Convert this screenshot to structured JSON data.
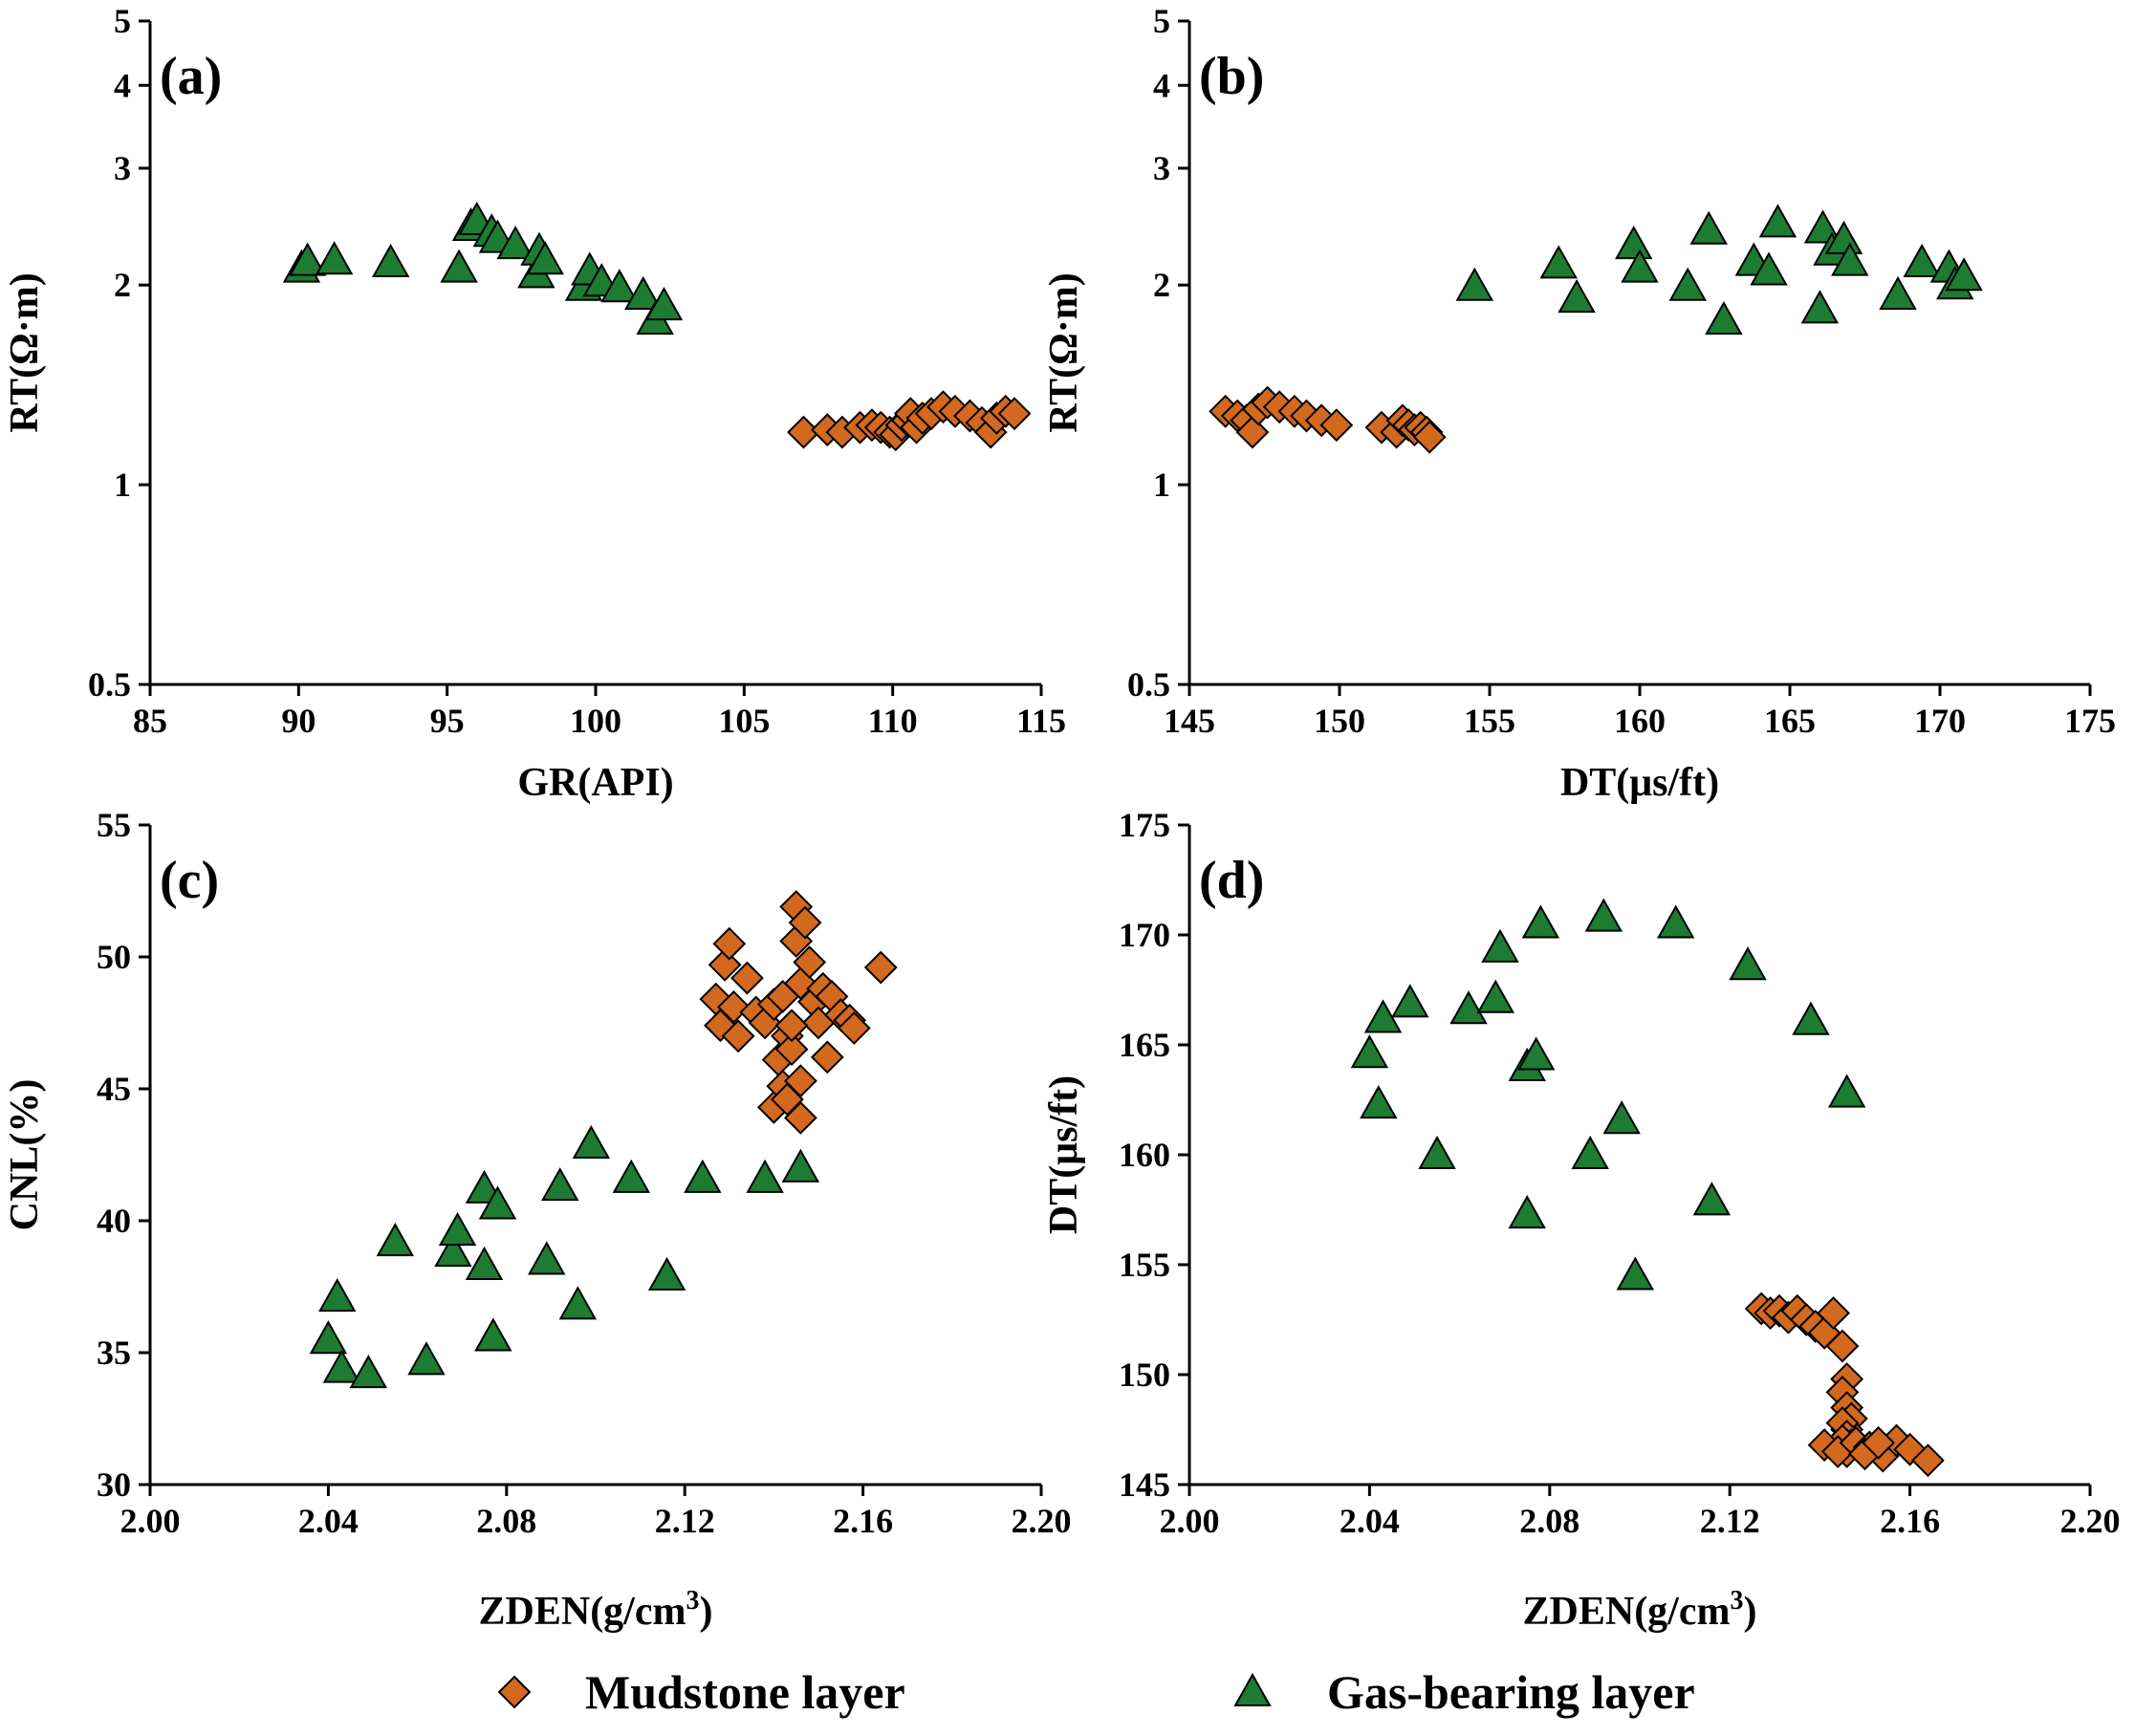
{
  "figure_title": "",
  "legend": {
    "items": [
      {
        "label": "Mudstone layer",
        "marker": "diamond",
        "color": "#D2691E"
      },
      {
        "label": "Gas-bearing layer",
        "marker": "triangle",
        "color": "#1E7B32"
      }
    ]
  },
  "chart_data": [
    {
      "type": "scatter",
      "panel_label": "(a)",
      "xlabel": "GR(API)",
      "ylabel": "RT(Ω·m)",
      "yscale": "log",
      "xlim": [
        85,
        115
      ],
      "ylim": [
        0.5,
        5
      ],
      "xticks": [
        "85",
        "90",
        "95",
        "100",
        "105",
        "110",
        "115"
      ],
      "yticks": [
        "0.5",
        "1",
        "2",
        "3",
        "4",
        "5"
      ],
      "series": [
        {
          "name": "Gas-bearing layer",
          "x": [
            90.1,
            90.3,
            91.2,
            93.1,
            95.4,
            95.8,
            96.0,
            96.5,
            96.7,
            97.3,
            98.0,
            98.1,
            98.3,
            99.6,
            99.8,
            100.2,
            100.8,
            101.6,
            102.0,
            102.3
          ],
          "y": [
            2.12,
            2.17,
            2.18,
            2.16,
            2.12,
            2.45,
            2.5,
            2.4,
            2.35,
            2.3,
            2.08,
            2.25,
            2.18,
            1.99,
            2.1,
            2.02,
            1.98,
            1.93,
            1.77,
            1.86
          ]
        },
        {
          "name": "Mudstone layer",
          "x": [
            107.0,
            107.8,
            108.3,
            108.9,
            109.3,
            109.6,
            109.9,
            110.1,
            110.3,
            110.5,
            110.6,
            110.8,
            111.0,
            111.3,
            111.7,
            112.1,
            112.6,
            113.0,
            113.3,
            113.5,
            113.8,
            114.1
          ],
          "y": [
            1.2,
            1.21,
            1.2,
            1.22,
            1.23,
            1.22,
            1.2,
            1.19,
            1.23,
            1.25,
            1.28,
            1.22,
            1.26,
            1.28,
            1.31,
            1.29,
            1.27,
            1.24,
            1.2,
            1.26,
            1.29,
            1.28
          ]
        }
      ]
    },
    {
      "type": "scatter",
      "panel_label": "(b)",
      "xlabel": "DT(μs/ft)",
      "ylabel": "RT(Ω·m)",
      "yscale": "log",
      "xlim": [
        145,
        175
      ],
      "ylim": [
        0.5,
        5
      ],
      "xticks": [
        "145",
        "150",
        "155",
        "160",
        "165",
        "170",
        "175"
      ],
      "yticks": [
        "0.5",
        "1",
        "2",
        "3",
        "4",
        "5"
      ],
      "series": [
        {
          "name": "Gas-bearing layer",
          "x": [
            154.5,
            157.3,
            157.9,
            159.8,
            160.0,
            161.6,
            162.3,
            162.8,
            163.8,
            164.3,
            164.6,
            166.0,
            166.1,
            166.4,
            166.8,
            167.0,
            168.6,
            169.4,
            170.3,
            170.5,
            170.8
          ],
          "y": [
            1.99,
            2.15,
            1.91,
            2.3,
            2.12,
            1.99,
            2.42,
            1.77,
            2.17,
            2.1,
            2.48,
            1.84,
            2.43,
            2.25,
            2.34,
            2.17,
            1.93,
            2.16,
            2.12,
            2.0,
            2.06
          ]
        },
        {
          "name": "Mudstone layer",
          "x": [
            146.2,
            146.6,
            146.9,
            147.1,
            147.3,
            147.6,
            148.0,
            148.5,
            148.9,
            149.4,
            149.9,
            151.4,
            151.9,
            152.1,
            152.3,
            152.5,
            152.7,
            152.9,
            153.0
          ],
          "y": [
            1.29,
            1.27,
            1.25,
            1.2,
            1.3,
            1.33,
            1.31,
            1.29,
            1.27,
            1.25,
            1.23,
            1.22,
            1.2,
            1.25,
            1.23,
            1.21,
            1.22,
            1.2,
            1.18
          ]
        }
      ]
    },
    {
      "type": "scatter",
      "panel_label": "(c)",
      "xlabel": "ZDEN(g/cm",
      "xlabel_sup": "3",
      "xlabel_end": ")",
      "ylabel": "CNL(%)",
      "xlim": [
        2.0,
        2.2
      ],
      "ylim": [
        30,
        55
      ],
      "xticks": [
        "2.00",
        "2.04",
        "2.08",
        "2.12",
        "2.16",
        "2.20"
      ],
      "yticks": [
        "30",
        "35",
        "40",
        "45",
        "50",
        "55"
      ],
      "series": [
        {
          "name": "Gas-bearing layer",
          "x": [
            2.04,
            2.042,
            2.043,
            2.049,
            2.055,
            2.062,
            2.068,
            2.069,
            2.075,
            2.075,
            2.077,
            2.078,
            2.089,
            2.092,
            2.096,
            2.099,
            2.108,
            2.116,
            2.124,
            2.138,
            2.146
          ],
          "y": [
            35.5,
            37.1,
            34.4,
            34.2,
            39.2,
            34.7,
            38.8,
            39.6,
            38.3,
            41.2,
            35.6,
            40.6,
            38.5,
            41.3,
            36.8,
            42.9,
            41.6,
            37.9,
            41.6,
            41.6,
            42.0
          ]
        },
        {
          "name": "Mudstone layer",
          "x": [
            2.127,
            2.128,
            2.129,
            2.13,
            2.131,
            2.132,
            2.134,
            2.136,
            2.138,
            2.14,
            2.14,
            2.141,
            2.142,
            2.142,
            2.143,
            2.143,
            2.144,
            2.145,
            2.145,
            2.146,
            2.146,
            2.147,
            2.148,
            2.149,
            2.15,
            2.151,
            2.152,
            2.153,
            2.155,
            2.157,
            2.158,
            2.164,
            2.146,
            2.144
          ],
          "y": [
            48.4,
            47.4,
            49.7,
            50.5,
            48.1,
            47.0,
            49.2,
            47.9,
            47.5,
            48.2,
            44.3,
            46.1,
            45.1,
            48.5,
            47.0,
            44.6,
            46.5,
            50.6,
            51.9,
            49.0,
            45.3,
            51.3,
            49.8,
            48.3,
            47.5,
            48.8,
            46.2,
            48.5,
            47.8,
            47.6,
            47.3,
            49.6,
            43.9,
            47.4
          ]
        }
      ]
    },
    {
      "type": "scatter",
      "panel_label": "(d)",
      "xlabel": "ZDEN(g/cm",
      "xlabel_sup": "3",
      "xlabel_end": ")",
      "ylabel": "DT(μs/ft)",
      "xlim": [
        2.0,
        2.2
      ],
      "ylim": [
        145,
        175
      ],
      "xticks": [
        "2.00",
        "2.04",
        "2.08",
        "2.12",
        "2.16",
        "2.20"
      ],
      "yticks": [
        "145",
        "150",
        "155",
        "160",
        "165",
        "170",
        "175"
      ],
      "series": [
        {
          "name": "Gas-bearing layer",
          "x": [
            2.04,
            2.042,
            2.043,
            2.049,
            2.055,
            2.062,
            2.068,
            2.069,
            2.075,
            2.075,
            2.077,
            2.078,
            2.089,
            2.092,
            2.096,
            2.099,
            2.108,
            2.116,
            2.124,
            2.138,
            2.146
          ],
          "y": [
            164.6,
            162.3,
            166.2,
            166.9,
            160.0,
            166.6,
            167.1,
            169.4,
            164.0,
            157.3,
            164.5,
            170.5,
            160.0,
            170.8,
            161.6,
            154.5,
            170.5,
            157.9,
            168.6,
            166.1,
            162.8
          ]
        },
        {
          "name": "Mudstone layer",
          "x": [
            2.127,
            2.129,
            2.131,
            2.133,
            2.135,
            2.137,
            2.139,
            2.141,
            2.143,
            2.145,
            2.146,
            2.145,
            2.146,
            2.147,
            2.146,
            2.145,
            2.146,
            2.147,
            2.146,
            2.145,
            2.141,
            2.144,
            2.148,
            2.151,
            2.154,
            2.157,
            2.16,
            2.164,
            2.15,
            2.153
          ],
          "y": [
            153.0,
            152.8,
            152.9,
            152.6,
            152.9,
            152.5,
            152.2,
            151.9,
            152.8,
            151.3,
            149.8,
            149.2,
            148.5,
            148.0,
            147.5,
            147.8,
            147.2,
            146.8,
            146.5,
            147.0,
            146.8,
            146.5,
            146.9,
            146.7,
            146.3,
            147.0,
            146.6,
            146.1,
            146.4,
            146.9
          ]
        }
      ]
    }
  ]
}
